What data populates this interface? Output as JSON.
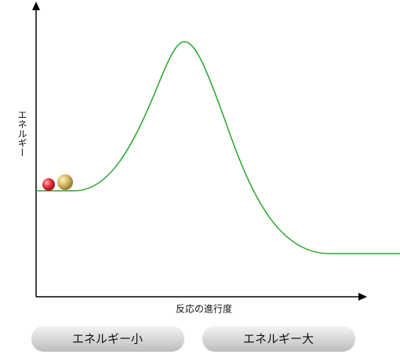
{
  "axes": {
    "y_label": "エネルギー",
    "x_label": "反応の進行度"
  },
  "buttons": [
    "エネルギー小",
    "エネルギー大"
  ]
}
